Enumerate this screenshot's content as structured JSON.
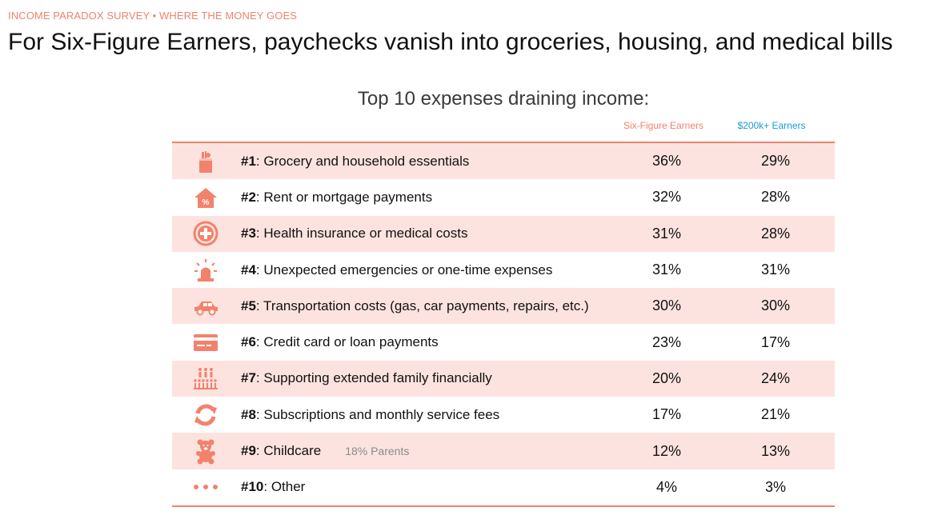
{
  "eyebrow": "INCOME PARADOX SURVEY • WHERE THE MONEY GOES",
  "headline": "For Six-Figure Earners, paychecks vanish into groceries, housing, and medical bills",
  "colors": {
    "accent": "#f2826c",
    "blue": "#1a9ad8",
    "row_shade": "#fde3df"
  },
  "chart_data": {
    "type": "table",
    "title": "Top 10 expenses draining income:",
    "columns": [
      "Six-Figure Earners",
      "$200k+ Earners"
    ],
    "rows": [
      {
        "rank": "#1",
        "label": ": Grocery and household essentials",
        "icon": "grocery-bag-icon",
        "six": "36%",
        "big": "29%"
      },
      {
        "rank": "#2",
        "label": ": Rent or mortgage payments",
        "icon": "house-percent-icon",
        "six": "32%",
        "big": "28%"
      },
      {
        "rank": "#3",
        "label": ": Health insurance or medical costs",
        "icon": "medical-cross-icon",
        "six": "31%",
        "big": "28%"
      },
      {
        "rank": "#4",
        "label": ": Unexpected emergencies or one-time expenses",
        "icon": "siren-icon",
        "six": "31%",
        "big": "31%"
      },
      {
        "rank": "#5",
        "label": ": Transportation costs (gas, car payments, repairs, etc.)",
        "icon": "car-icon",
        "six": "30%",
        "big": "30%"
      },
      {
        "rank": "#6",
        "label": ": Credit card or loan payments",
        "icon": "credit-card-icon",
        "six": "23%",
        "big": "17%"
      },
      {
        "rank": "#7",
        "label": ": Supporting extended family financially",
        "icon": "family-icon",
        "six": "20%",
        "big": "24%"
      },
      {
        "rank": "#8",
        "label": ": Subscriptions and monthly service fees",
        "icon": "refresh-icon",
        "six": "17%",
        "big": "21%"
      },
      {
        "rank": "#9",
        "label": ": Childcare",
        "icon": "teddy-bear-icon",
        "six": "12%",
        "big": "13%",
        "note": "18% Parents"
      },
      {
        "rank": "#10",
        "label": ": Other",
        "icon": "dots-icon",
        "six": "4%",
        "big": "3%"
      }
    ]
  }
}
